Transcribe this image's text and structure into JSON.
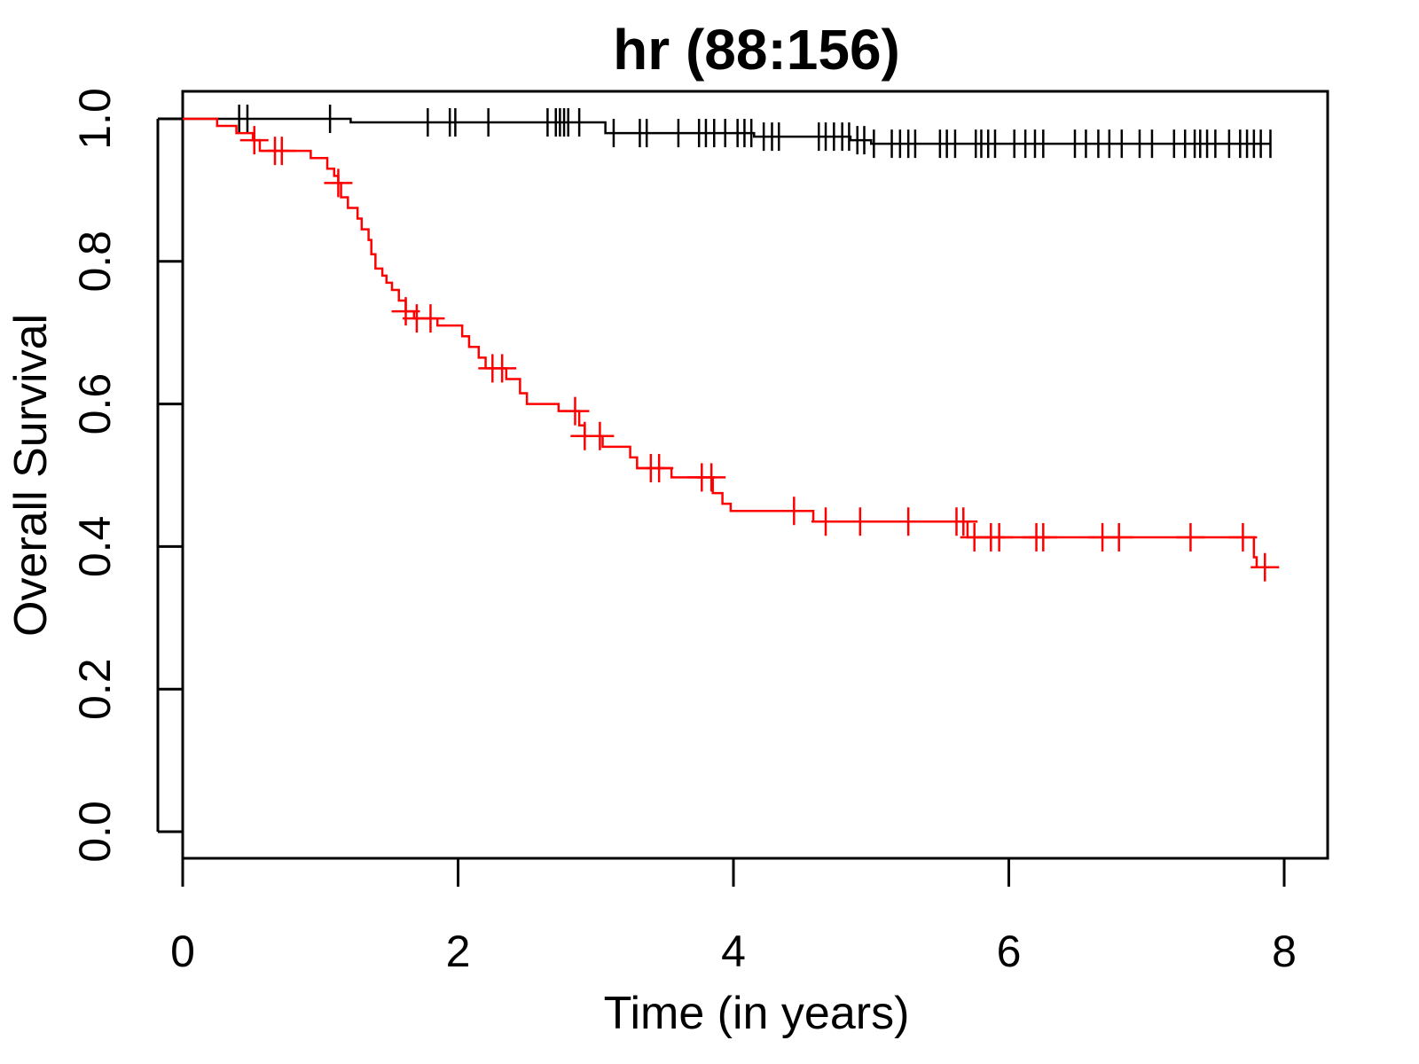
{
  "chart_data": {
    "type": "line",
    "title": "hr (88:156)",
    "xlabel": "Time (in years)",
    "ylabel": "Overall Survival",
    "xlim": [
      0,
      8
    ],
    "ylim": [
      0,
      1
    ],
    "x_ticks": [
      "0",
      "2",
      "4",
      "6",
      "8"
    ],
    "y_ticks": [
      "0.0",
      "0.2",
      "0.4",
      "0.6",
      "0.8",
      "1.0"
    ],
    "grid": false,
    "legend": "none",
    "series": [
      {
        "color": "#000000",
        "steps": [
          [
            0,
            1.0
          ],
          [
            1.22,
            0.995
          ],
          [
            3.07,
            0.98
          ],
          [
            4.15,
            0.975
          ],
          [
            4.85,
            0.97
          ],
          [
            5.0,
            0.965
          ]
        ],
        "end": 7.9,
        "censor_times": [
          0.41,
          0.47,
          1.07,
          1.78,
          1.94,
          1.98,
          2.22,
          2.65,
          2.71,
          2.74,
          2.77,
          2.8,
          2.88,
          3.13,
          3.32,
          3.37,
          3.6,
          3.75,
          3.8,
          3.86,
          3.94,
          4.03,
          4.08,
          4.13,
          4.22,
          4.28,
          4.33,
          4.62,
          4.67,
          4.73,
          4.79,
          4.84,
          4.9,
          4.95,
          5.02,
          5.15,
          5.21,
          5.27,
          5.32,
          5.5,
          5.55,
          5.61,
          5.76,
          5.8,
          5.85,
          5.9,
          6.04,
          6.12,
          6.19,
          6.25,
          6.48,
          6.56,
          6.65,
          6.73,
          6.82,
          6.95,
          7.04,
          7.2,
          7.28,
          7.35,
          7.39,
          7.44,
          7.5,
          7.6,
          7.68,
          7.73,
          7.78,
          7.83,
          7.9
        ]
      },
      {
        "color": "#ff0000",
        "steps": [
          [
            0,
            1.0
          ],
          [
            0.25,
            0.99
          ],
          [
            0.39,
            0.98
          ],
          [
            0.51,
            0.97
          ],
          [
            0.56,
            0.955
          ],
          [
            0.93,
            0.945
          ],
          [
            1.05,
            0.93
          ],
          [
            1.1,
            0.92
          ],
          [
            1.13,
            0.91
          ],
          [
            1.15,
            0.89
          ],
          [
            1.2,
            0.875
          ],
          [
            1.27,
            0.86
          ],
          [
            1.3,
            0.845
          ],
          [
            1.35,
            0.83
          ],
          [
            1.37,
            0.81
          ],
          [
            1.4,
            0.79
          ],
          [
            1.45,
            0.78
          ],
          [
            1.48,
            0.77
          ],
          [
            1.52,
            0.76
          ],
          [
            1.57,
            0.745
          ],
          [
            1.62,
            0.73
          ],
          [
            1.68,
            0.72
          ],
          [
            1.85,
            0.71
          ],
          [
            2.03,
            0.695
          ],
          [
            2.08,
            0.68
          ],
          [
            2.15,
            0.665
          ],
          [
            2.2,
            0.65
          ],
          [
            2.35,
            0.635
          ],
          [
            2.45,
            0.615
          ],
          [
            2.5,
            0.6
          ],
          [
            2.73,
            0.59
          ],
          [
            2.88,
            0.57
          ],
          [
            2.92,
            0.555
          ],
          [
            3.05,
            0.54
          ],
          [
            3.25,
            0.525
          ],
          [
            3.3,
            0.51
          ],
          [
            3.55,
            0.497
          ],
          [
            3.85,
            0.475
          ],
          [
            3.92,
            0.46
          ],
          [
            3.98,
            0.45
          ],
          [
            4.58,
            0.435
          ],
          [
            5.7,
            0.413
          ],
          [
            7.78,
            0.385
          ],
          [
            7.8,
            0.371
          ]
        ],
        "end": 7.95,
        "censor_times": [
          0.52,
          0.67,
          0.72,
          1.13,
          1.62,
          1.7,
          1.8,
          2.25,
          2.32,
          2.85,
          2.92,
          3.03,
          3.4,
          3.46,
          3.77,
          3.84,
          4.44,
          4.67,
          4.92,
          5.27,
          5.62,
          5.67,
          5.75,
          5.87,
          5.93,
          6.2,
          6.25,
          6.68,
          6.8,
          7.32,
          7.7,
          7.86
        ]
      }
    ]
  }
}
